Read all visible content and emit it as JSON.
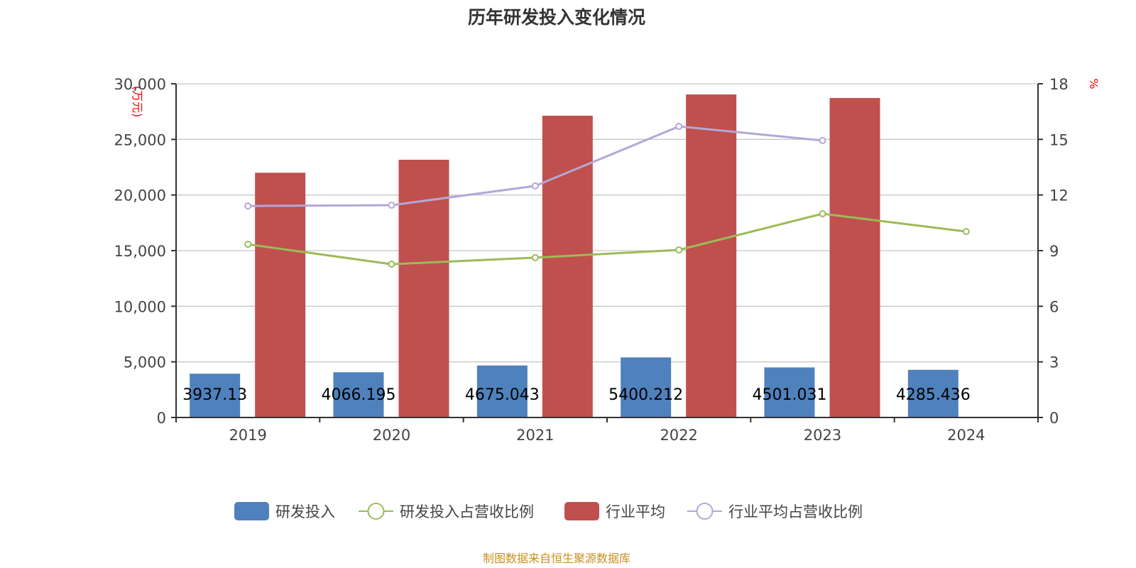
{
  "chart_data": {
    "type": "bar",
    "title": "历年研发投入变化情况",
    "source": "制图数据来自恒生聚源数据库",
    "categories": [
      "2019",
      "2020",
      "2021",
      "2022",
      "2023",
      "2024"
    ],
    "ylabel_left": "(万元)",
    "ylabel_right": "%",
    "ylim_left": [
      0,
      30000
    ],
    "ylim_right": [
      0,
      18
    ],
    "yticks_left": [
      "0",
      "5,000",
      "10,000",
      "15,000",
      "20,000",
      "25,000",
      "30,000"
    ],
    "yticks_right": [
      "0",
      "3",
      "6",
      "9",
      "12",
      "15",
      "18"
    ],
    "grid": true,
    "legend_position": "bottom",
    "series": [
      {
        "name": "研发投入",
        "type": "bar",
        "axis": "left",
        "color": "#4f81bd",
        "values": [
          3937.13,
          4066.195,
          4675.043,
          5400.212,
          4501.031,
          4285.436
        ],
        "labels": [
          "3937.13",
          "4066.195",
          "4675.043",
          "5400.212",
          "4501.031",
          "4285.436"
        ]
      },
      {
        "name": "研发投入占营收比例",
        "type": "line",
        "axis": "right",
        "color": "#9bbb59",
        "values": [
          9.34,
          8.27,
          8.62,
          9.04,
          10.99,
          10.03
        ]
      },
      {
        "name": "行业平均",
        "type": "bar",
        "axis": "left",
        "color": "#c0504d",
        "values": [
          22000,
          23170,
          27130,
          29040,
          28720,
          null
        ]
      },
      {
        "name": "行业平均占营收比例",
        "type": "line",
        "axis": "right",
        "color": "#b4a7d6",
        "values": [
          11.41,
          11.45,
          12.49,
          15.7,
          14.94,
          null
        ]
      }
    ]
  }
}
